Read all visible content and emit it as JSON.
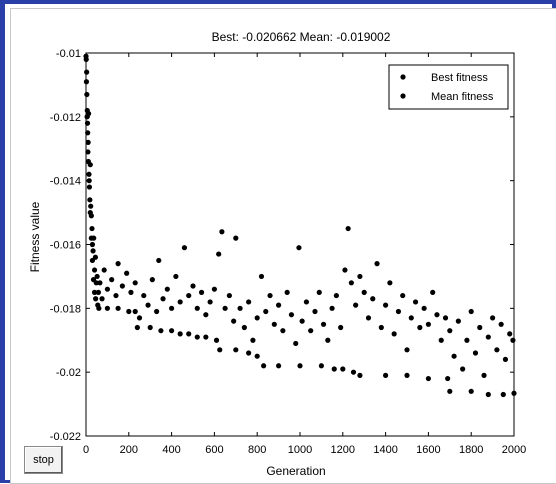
{
  "window": {
    "stop_label": "stop"
  },
  "chart_data": {
    "type": "scatter",
    "title": "Best: -0.020662 Mean: -0.019002",
    "xlabel": "Generation",
    "ylabel": "Fitness value",
    "xlim": [
      0,
      2000
    ],
    "ylim": [
      -0.022,
      -0.01
    ],
    "xticks": [
      0,
      200,
      400,
      600,
      800,
      1000,
      1200,
      1400,
      1600,
      1800,
      2000
    ],
    "yticks": [
      -0.01,
      -0.012,
      -0.014,
      -0.016,
      -0.018,
      -0.02,
      -0.022
    ],
    "xtick_labels": [
      "0",
      "200",
      "400",
      "600",
      "800",
      "1000",
      "1200",
      "1400",
      "1600",
      "1800",
      "2000"
    ],
    "ytick_labels": [
      "-0.01",
      "-0.012",
      "-0.014",
      "-0.016",
      "-0.018",
      "-0.02",
      "-0.022"
    ],
    "grid": false,
    "legend": {
      "placement": "top-right",
      "entries": [
        "Best fitness",
        "Mean fitness"
      ]
    },
    "marker_color": "#000000",
    "series": [
      {
        "name": "Best fitness",
        "points": [
          [
            0,
            -0.0101
          ],
          [
            3,
            -0.0106
          ],
          [
            6,
            -0.0118
          ],
          [
            10,
            -0.0128
          ],
          [
            15,
            -0.014
          ],
          [
            20,
            -0.015
          ],
          [
            25,
            -0.0158
          ],
          [
            30,
            -0.0165
          ],
          [
            35,
            -0.0171
          ],
          [
            40,
            -0.0175
          ],
          [
            45,
            -0.0177
          ],
          [
            55,
            -0.0179
          ],
          [
            60,
            -0.018
          ],
          [
            100,
            -0.018
          ],
          [
            150,
            -0.018
          ],
          [
            200,
            -0.0181
          ],
          [
            230,
            -0.0181
          ],
          [
            240,
            -0.0186
          ],
          [
            300,
            -0.0186
          ],
          [
            350,
            -0.0187
          ],
          [
            400,
            -0.0187
          ],
          [
            440,
            -0.0188
          ],
          [
            480,
            -0.0188
          ],
          [
            520,
            -0.0189
          ],
          [
            560,
            -0.0189
          ],
          [
            610,
            -0.019
          ],
          [
            625,
            -0.0193
          ],
          [
            700,
            -0.0193
          ],
          [
            760,
            -0.0194
          ],
          [
            800,
            -0.0195
          ],
          [
            830,
            -0.0198
          ],
          [
            900,
            -0.0198
          ],
          [
            1000,
            -0.0198
          ],
          [
            1100,
            -0.0198
          ],
          [
            1160,
            -0.0199
          ],
          [
            1200,
            -0.0199
          ],
          [
            1250,
            -0.02
          ],
          [
            1280,
            -0.0201
          ],
          [
            1400,
            -0.0201
          ],
          [
            1500,
            -0.0201
          ],
          [
            1600,
            -0.0202
          ],
          [
            1690,
            -0.0202
          ],
          [
            1700,
            -0.0206
          ],
          [
            1800,
            -0.0206
          ],
          [
            1880,
            -0.0207
          ],
          [
            1950,
            -0.0207
          ],
          [
            2000,
            -0.02066
          ]
        ]
      },
      {
        "name": "Mean fitness",
        "points": [
          [
            1,
            -0.0102
          ],
          [
            2,
            -0.0109
          ],
          [
            4,
            -0.0113
          ],
          [
            5,
            -0.012
          ],
          [
            7,
            -0.0122
          ],
          [
            8,
            -0.0125
          ],
          [
            9,
            -0.0131
          ],
          [
            11,
            -0.0134
          ],
          [
            12,
            -0.0119
          ],
          [
            14,
            -0.0138
          ],
          [
            16,
            -0.0142
          ],
          [
            18,
            -0.0146
          ],
          [
            20,
            -0.0135
          ],
          [
            22,
            -0.0148
          ],
          [
            25,
            -0.0151
          ],
          [
            28,
            -0.0155
          ],
          [
            30,
            -0.016
          ],
          [
            33,
            -0.0162
          ],
          [
            36,
            -0.0158
          ],
          [
            40,
            -0.0168
          ],
          [
            44,
            -0.0164
          ],
          [
            48,
            -0.0172
          ],
          [
            52,
            -0.017
          ],
          [
            58,
            -0.0175
          ],
          [
            65,
            -0.0172
          ],
          [
            75,
            -0.0177
          ],
          [
            85,
            -0.0168
          ],
          [
            100,
            -0.0174
          ],
          [
            120,
            -0.0171
          ],
          [
            140,
            -0.0176
          ],
          [
            150,
            -0.0166
          ],
          [
            170,
            -0.0173
          ],
          [
            190,
            -0.0169
          ],
          [
            210,
            -0.0175
          ],
          [
            230,
            -0.0172
          ],
          [
            250,
            -0.0183
          ],
          [
            270,
            -0.0176
          ],
          [
            290,
            -0.0179
          ],
          [
            310,
            -0.0171
          ],
          [
            330,
            -0.0181
          ],
          [
            340,
            -0.0165
          ],
          [
            360,
            -0.0177
          ],
          [
            380,
            -0.0174
          ],
          [
            400,
            -0.018
          ],
          [
            420,
            -0.017
          ],
          [
            440,
            -0.0178
          ],
          [
            460,
            -0.0161
          ],
          [
            480,
            -0.0176
          ],
          [
            500,
            -0.0173
          ],
          [
            520,
            -0.018
          ],
          [
            540,
            -0.0175
          ],
          [
            560,
            -0.0182
          ],
          [
            580,
            -0.0178
          ],
          [
            600,
            -0.0174
          ],
          [
            620,
            -0.0163
          ],
          [
            635,
            -0.0156
          ],
          [
            650,
            -0.018
          ],
          [
            670,
            -0.0176
          ],
          [
            690,
            -0.0184
          ],
          [
            700,
            -0.0158
          ],
          [
            720,
            -0.018
          ],
          [
            740,
            -0.0186
          ],
          [
            760,
            -0.0178
          ],
          [
            780,
            -0.019
          ],
          [
            800,
            -0.0183
          ],
          [
            820,
            -0.017
          ],
          [
            840,
            -0.0181
          ],
          [
            860,
            -0.0176
          ],
          [
            880,
            -0.0185
          ],
          [
            900,
            -0.0179
          ],
          [
            920,
            -0.0187
          ],
          [
            940,
            -0.0175
          ],
          [
            960,
            -0.0182
          ],
          [
            980,
            -0.0191
          ],
          [
            995,
            -0.0161
          ],
          [
            1010,
            -0.0184
          ],
          [
            1030,
            -0.0178
          ],
          [
            1050,
            -0.0187
          ],
          [
            1070,
            -0.0181
          ],
          [
            1090,
            -0.0175
          ],
          [
            1110,
            -0.0185
          ],
          [
            1130,
            -0.019
          ],
          [
            1150,
            -0.018
          ],
          [
            1170,
            -0.0176
          ],
          [
            1190,
            -0.0186
          ],
          [
            1210,
            -0.0168
          ],
          [
            1225,
            -0.0155
          ],
          [
            1240,
            -0.0172
          ],
          [
            1260,
            -0.0179
          ],
          [
            1280,
            -0.017
          ],
          [
            1300,
            -0.0175
          ],
          [
            1320,
            -0.0183
          ],
          [
            1340,
            -0.0177
          ],
          [
            1360,
            -0.0166
          ],
          [
            1380,
            -0.0186
          ],
          [
            1400,
            -0.0179
          ],
          [
            1420,
            -0.0172
          ],
          [
            1440,
            -0.0188
          ],
          [
            1460,
            -0.0181
          ],
          [
            1480,
            -0.0176
          ],
          [
            1500,
            -0.0193
          ],
          [
            1520,
            -0.0183
          ],
          [
            1540,
            -0.0178
          ],
          [
            1560,
            -0.0186
          ],
          [
            1580,
            -0.018
          ],
          [
            1600,
            -0.0185
          ],
          [
            1620,
            -0.0175
          ],
          [
            1640,
            -0.0182
          ],
          [
            1660,
            -0.019
          ],
          [
            1680,
            -0.0183
          ],
          [
            1700,
            -0.0187
          ],
          [
            1720,
            -0.0195
          ],
          [
            1740,
            -0.0184
          ],
          [
            1760,
            -0.0199
          ],
          [
            1780,
            -0.019
          ],
          [
            1800,
            -0.0181
          ],
          [
            1820,
            -0.0194
          ],
          [
            1840,
            -0.0186
          ],
          [
            1860,
            -0.0201
          ],
          [
            1880,
            -0.0189
          ],
          [
            1900,
            -0.0183
          ],
          [
            1920,
            -0.0193
          ],
          [
            1940,
            -0.0185
          ],
          [
            1960,
            -0.0196
          ],
          [
            1980,
            -0.0188
          ],
          [
            1995,
            -0.019
          ]
        ]
      }
    ]
  }
}
